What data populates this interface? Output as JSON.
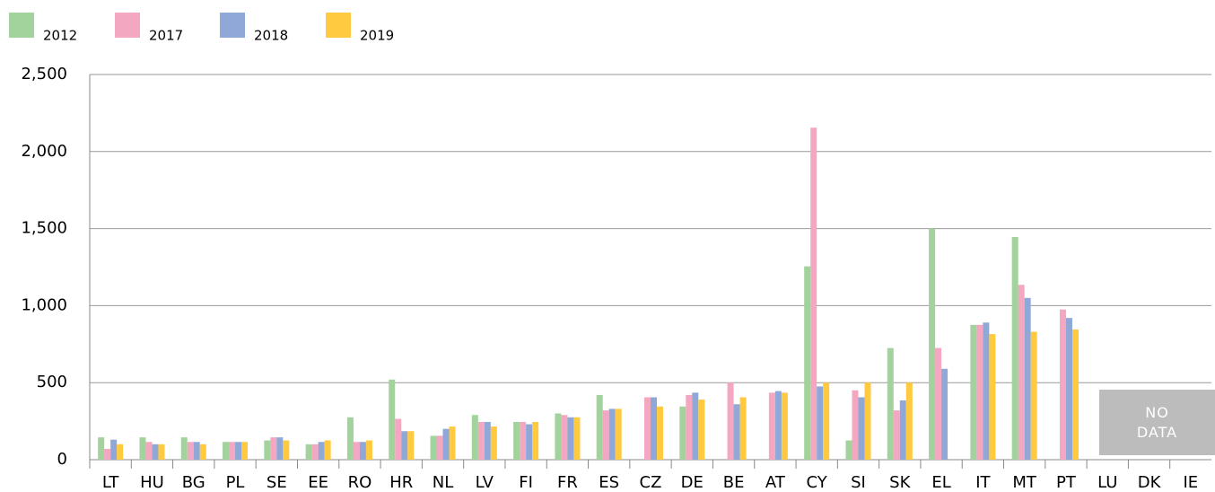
{
  "chart_data": {
    "type": "bar",
    "categories": [
      "LT",
      "HU",
      "BG",
      "PL",
      "SE",
      "EE",
      "RO",
      "HR",
      "NL",
      "LV",
      "FI",
      "FR",
      "ES",
      "CZ",
      "DE",
      "BE",
      "AT",
      "CY",
      "SI",
      "SK",
      "EL",
      "IT",
      "MT",
      "PT",
      "LU",
      "DK",
      "IE"
    ],
    "series": [
      {
        "name": "2012",
        "color": "#a3d39c",
        "values": [
          145,
          145,
          145,
          115,
          125,
          100,
          275,
          520,
          155,
          290,
          245,
          300,
          420,
          null,
          345,
          null,
          null,
          1255,
          125,
          725,
          1500,
          875,
          1445,
          null,
          null,
          null,
          null
        ]
      },
      {
        "name": "2017",
        "color": "#f4a7c0",
        "values": [
          70,
          115,
          115,
          115,
          145,
          100,
          115,
          265,
          155,
          245,
          245,
          290,
          320,
          405,
          420,
          500,
          435,
          2155,
          450,
          320,
          725,
          875,
          1135,
          975,
          null,
          null,
          null
        ]
      },
      {
        "name": "2018",
        "color": "#8fa8d8",
        "values": [
          130,
          100,
          115,
          115,
          145,
          115,
          115,
          185,
          200,
          245,
          230,
          275,
          330,
          405,
          435,
          360,
          445,
          475,
          405,
          385,
          590,
          890,
          1050,
          920,
          null,
          null,
          null
        ]
      },
      {
        "name": "2019",
        "color": "#ffc940",
        "values": [
          100,
          100,
          100,
          115,
          125,
          125,
          125,
          185,
          215,
          215,
          245,
          275,
          330,
          345,
          390,
          405,
          435,
          500,
          500,
          500,
          null,
          815,
          830,
          845,
          null,
          null,
          null
        ]
      }
    ],
    "ylim": [
      0,
      2500
    ],
    "yticks": [
      0,
      500,
      {
        "value": 1000,
        "label": "1,000"
      },
      {
        "value": 1500,
        "label": "1,500"
      },
      {
        "value": 2000,
        "label": "2,000"
      },
      {
        "value": 2500,
        "label": "2,500"
      }
    ],
    "grid": true,
    "annotation": "NO DATA"
  }
}
